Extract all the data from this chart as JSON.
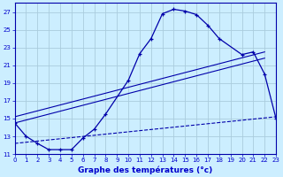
{
  "bg_color": "#cceeff",
  "grid_color": "#aaccdd",
  "line_color": "#0000aa",
  "marker": "+",
  "xlabel": "Graphe des températures (°c)",
  "xlabel_color": "#0000cc",
  "tick_color": "#0000cc",
  "xlim": [
    0,
    23
  ],
  "ylim": [
    11,
    28
  ],
  "yticks": [
    11,
    13,
    15,
    17,
    19,
    21,
    23,
    25,
    27
  ],
  "xticks": [
    0,
    1,
    2,
    3,
    4,
    5,
    6,
    7,
    8,
    9,
    10,
    11,
    12,
    13,
    14,
    15,
    16,
    17,
    18,
    19,
    20,
    21,
    22,
    23
  ],
  "line1_x": [
    0,
    1,
    2,
    3,
    4,
    5,
    6,
    7,
    8,
    10,
    11,
    12,
    13,
    14,
    15,
    16,
    17,
    18,
    20,
    21,
    22,
    23
  ],
  "line1_y": [
    14.5,
    13.0,
    12.2,
    11.5,
    11.5,
    11.5,
    12.8,
    13.8,
    15.5,
    19.3,
    22.3,
    24.0,
    26.8,
    27.3,
    27.1,
    26.7,
    25.5,
    24.0,
    22.2,
    22.5,
    20.0,
    15.0
  ],
  "line2_x": [
    0,
    22
  ],
  "line2_y": [
    15.2,
    22.5
  ],
  "line3_x": [
    0,
    22
  ],
  "line3_y": [
    14.5,
    21.8
  ],
  "line4_x": [
    0,
    23
  ],
  "line4_y": [
    12.2,
    15.2
  ]
}
